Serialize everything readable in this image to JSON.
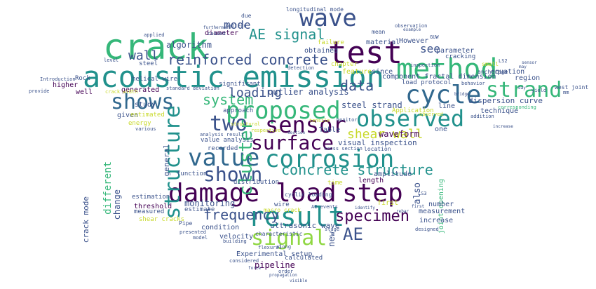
{
  "palette": {
    "purple": "#440154",
    "indigo": "#3b528b",
    "blue": "#31688e",
    "teal": "#21918c",
    "green": "#35b779",
    "lime": "#90d743",
    "yellow": "#c8d92a"
  },
  "words": [
    {
      "id": "crack",
      "text": "crack",
      "color": "green"
    },
    {
      "id": "wave",
      "text": "wave",
      "color": "indigo"
    },
    {
      "id": "test",
      "text": "test",
      "color": "purple"
    },
    {
      "id": "ae-signal",
      "text": "AE signal",
      "color": "teal"
    },
    {
      "id": "acoustic-emission",
      "text": "acoustic emission",
      "color": "teal"
    },
    {
      "id": "method",
      "text": "method",
      "color": "green"
    },
    {
      "id": "reinforced-concrete",
      "text": "reinforced concrete",
      "color": "indigo"
    },
    {
      "id": "wall",
      "text": "wall",
      "color": "indigo"
    },
    {
      "id": "mode",
      "text": "mode",
      "color": "indigo"
    },
    {
      "id": "strand",
      "text": "strand",
      "color": "green"
    },
    {
      "id": "cycle",
      "text": "cycle",
      "color": "blue"
    },
    {
      "id": "shows",
      "text": "shows",
      "color": "blue"
    },
    {
      "id": "proposed",
      "text": "proposed",
      "color": "green"
    },
    {
      "id": "system",
      "text": "system",
      "color": "green"
    },
    {
      "id": "loading",
      "text": "loading",
      "color": "indigo"
    },
    {
      "id": "data",
      "text": "data",
      "color": "indigo"
    },
    {
      "id": "observed",
      "text": "observed",
      "color": "teal"
    },
    {
      "id": "two",
      "text": "two",
      "color": "indigo"
    },
    {
      "id": "sensor",
      "text": "sensor",
      "color": "purple"
    },
    {
      "id": "surface",
      "text": "surface",
      "color": "purple"
    },
    {
      "id": "shear-wall",
      "text": "shear wall",
      "color": "yellow"
    },
    {
      "id": "cluster",
      "text": "cluster",
      "color": "green"
    },
    {
      "id": "value",
      "text": "value",
      "color": "blue"
    },
    {
      "id": "corrosion",
      "text": "corrosion",
      "color": "teal"
    },
    {
      "id": "shown",
      "text": "shown",
      "color": "indigo"
    },
    {
      "id": "concrete-structure",
      "text": "concrete structure",
      "color": "teal"
    },
    {
      "id": "structure",
      "text": "structure",
      "color": "teal"
    },
    {
      "id": "damage",
      "text": "damage",
      "color": "purple"
    },
    {
      "id": "load",
      "text": "load",
      "color": "purple"
    },
    {
      "id": "step",
      "text": "step",
      "color": "purple"
    },
    {
      "id": "result",
      "text": "result",
      "color": "teal"
    },
    {
      "id": "signal",
      "text": "signal",
      "color": "lime"
    },
    {
      "id": "frequency",
      "text": "frequency",
      "color": "indigo"
    },
    {
      "id": "specimen",
      "text": "specimen",
      "color": "purple"
    },
    {
      "id": "ae",
      "text": "AE",
      "color": "indigo"
    },
    {
      "id": "see",
      "text": "see",
      "color": "indigo"
    },
    {
      "id": "outlier-analysis",
      "text": "outlier analysis",
      "color": "indigo"
    },
    {
      "id": "steel-strand",
      "text": "steel strand",
      "color": "indigo"
    },
    {
      "id": "waveform",
      "text": "waveform",
      "color": "purple"
    },
    {
      "id": "visual-inspection",
      "text": "visual inspection",
      "color": "indigo"
    },
    {
      "id": "monitoring",
      "text": "monitoring",
      "color": "indigo"
    },
    {
      "id": "ultrasonic-wave",
      "text": "ultrasonic wave",
      "color": "indigo"
    },
    {
      "id": "experimental-setup",
      "text": "Experimental setup",
      "color": "indigo"
    },
    {
      "id": "pipeline",
      "text": "pipeline",
      "color": "purple"
    },
    {
      "id": "algorithm",
      "text": "algorithm",
      "color": "indigo"
    },
    {
      "id": "diameter",
      "text": "diameter",
      "color": "purple"
    },
    {
      "id": "longitudinal-mode",
      "text": "longitudinal mode",
      "color": "indigo"
    },
    {
      "id": "material",
      "text": "material",
      "color": "indigo"
    },
    {
      "id": "however",
      "text": "However",
      "color": "indigo"
    },
    {
      "id": "obtained",
      "text": "obtained",
      "color": "indigo"
    },
    {
      "id": "parameter",
      "text": "parameter",
      "color": "indigo"
    },
    {
      "id": "cracking",
      "text": "cracking",
      "color": "indigo"
    },
    {
      "id": "chapter",
      "text": "chapter",
      "color": "yellow"
    },
    {
      "id": "feature",
      "text": "feature",
      "color": "yellow"
    },
    {
      "id": "since",
      "text": "since",
      "color": "indigo"
    },
    {
      "id": "also",
      "text": "also",
      "color": "indigo"
    },
    {
      "id": "equation",
      "text": "equation",
      "color": "indigo"
    },
    {
      "id": "region",
      "text": "region",
      "color": "indigo"
    },
    {
      "id": "component-fractal-dimension",
      "text": "component fractal dimension",
      "color": "indigo"
    },
    {
      "id": "load-protocol",
      "text": "load protocol",
      "color": "indigo"
    },
    {
      "id": "dispersion-curve",
      "text": "dispersion curve",
      "color": "indigo"
    },
    {
      "id": "technique",
      "text": "technique",
      "color": "indigo"
    },
    {
      "id": "line",
      "text": "line",
      "color": "indigo"
    },
    {
      "id": "one",
      "text": "one",
      "color": "indigo"
    },
    {
      "id": "application",
      "text": "Application",
      "color": "yellow"
    },
    {
      "id": "table",
      "text": "Table",
      "color": "indigo"
    },
    {
      "id": "location",
      "text": "location",
      "color": "indigo"
    },
    {
      "id": "length",
      "text": "length",
      "color": "purple"
    },
    {
      "id": "amplitude",
      "text": "amplitude",
      "color": "indigo"
    },
    {
      "id": "first",
      "text": "first",
      "color": "yellow"
    },
    {
      "id": "number",
      "text": "number",
      "color": "indigo"
    },
    {
      "id": "measurement",
      "text": "measurement",
      "color": "indigo"
    },
    {
      "id": "increase",
      "text": "increase",
      "color": "indigo"
    },
    {
      "id": "joint-opening",
      "text": "joint opening",
      "color": "green"
    },
    {
      "id": "new",
      "text": "new",
      "color": "indigo"
    },
    {
      "id": "observed-small",
      "text": "observed",
      "color": "yellow"
    },
    {
      "id": "generated",
      "text": "generated",
      "color": "purple"
    },
    {
      "id": "study",
      "text": "study",
      "color": "indigo"
    },
    {
      "id": "given",
      "text": "given",
      "color": "indigo"
    },
    {
      "id": "estimated",
      "text": "estimated",
      "color": "yellow"
    },
    {
      "id": "energy",
      "text": "energy",
      "color": "yellow"
    },
    {
      "id": "approach",
      "text": "approach",
      "color": "indigo"
    },
    {
      "id": "value-analysis",
      "text": "value analysis",
      "color": "indigo"
    },
    {
      "id": "recorded",
      "text": "recorded",
      "color": "indigo"
    },
    {
      "id": "significant",
      "text": "significant",
      "color": "indigo"
    },
    {
      "id": "standard-deviation",
      "text": "standard deviation",
      "color": "indigo"
    },
    {
      "id": "helical-wire",
      "text": "helical wire",
      "color": "indigo"
    },
    {
      "id": "well",
      "text": "well",
      "color": "purple"
    },
    {
      "id": "steel",
      "text": "steel",
      "color": "indigo"
    },
    {
      "id": "higher",
      "text": "higher",
      "color": "purple"
    },
    {
      "id": "rock",
      "text": "Rock",
      "color": "indigo"
    },
    {
      "id": "introduction",
      "text": "Introduction",
      "color": "indigo"
    },
    {
      "id": "provide",
      "text": "provide",
      "color": "indigo"
    },
    {
      "id": "different",
      "text": "different",
      "color": "green"
    },
    {
      "id": "change",
      "text": "change",
      "color": "indigo"
    },
    {
      "id": "crack-mode",
      "text": "crack mode",
      "color": "indigo"
    },
    {
      "id": "threshold",
      "text": "threshold",
      "color": "purple"
    },
    {
      "id": "measured",
      "text": "measured",
      "color": "indigo"
    },
    {
      "id": "estimation",
      "text": "estimation",
      "color": "indigo"
    },
    {
      "id": "shear-cracks",
      "text": "shear cracks",
      "color": "yellow"
    },
    {
      "id": "condition",
      "text": "condition",
      "color": "indigo"
    },
    {
      "id": "estimate",
      "text": "estimate",
      "color": "indigo"
    },
    {
      "id": "function",
      "text": "function",
      "color": "indigo"
    },
    {
      "id": "distribution",
      "text": "distribution",
      "color": "indigo"
    },
    {
      "id": "cyclic-loading",
      "text": "cyclic loading",
      "color": "indigo"
    },
    {
      "id": "wire",
      "text": "wire",
      "color": "indigo"
    },
    {
      "id": "velocity",
      "text": "velocity",
      "color": "indigo"
    },
    {
      "id": "calculated",
      "text": "calculated",
      "color": "indigo"
    },
    {
      "id": "pipe",
      "text": "Pipe",
      "color": "indigo"
    },
    {
      "id": "macro-crack",
      "text": "macro crack",
      "color": "yellow"
    },
    {
      "id": "time",
      "text": "time",
      "color": "yellow"
    },
    {
      "id": "characteristic",
      "text": "characteristic",
      "color": "indigo"
    },
    {
      "id": "general",
      "text": "general",
      "color": "indigo"
    },
    {
      "id": "due",
      "text": "due",
      "color": "indigo"
    },
    {
      "id": "pattern",
      "text": "pattern",
      "color": "indigo"
    },
    {
      "id": "observation",
      "text": "observation",
      "color": "indigo"
    },
    {
      "id": "mean",
      "text": "mean",
      "color": "indigo"
    },
    {
      "id": "failure",
      "text": "failure",
      "color": "yellow"
    },
    {
      "id": "small",
      "text": "small",
      "color": "yellow"
    },
    {
      "id": "anchorage",
      "text": "anchorage",
      "color": "indigo"
    },
    {
      "id": "west-joint",
      "text": "west joint",
      "color": "indigo"
    },
    {
      "id": "caused",
      "text": "caused",
      "color": "indigo"
    },
    {
      "id": "applied",
      "text": "applied",
      "color": "indigo"
    },
    {
      "id": "level",
      "text": "level",
      "color": "indigo"
    },
    {
      "id": "presented",
      "text": "presented",
      "color": "indigo"
    },
    {
      "id": "building",
      "text": "building",
      "color": "indigo"
    },
    {
      "id": "stage",
      "text": "stage",
      "color": "indigo"
    },
    {
      "id": "order",
      "text": "order",
      "color": "indigo"
    },
    {
      "id": "propagation",
      "text": "propagation",
      "color": "indigo"
    },
    {
      "id": "considered",
      "text": "considered",
      "color": "indigo"
    },
    {
      "id": "flexural",
      "text": "flexural",
      "color": "indigo"
    },
    {
      "id": "along",
      "text": "along",
      "color": "indigo"
    },
    {
      "id": "model",
      "text": "model",
      "color": "indigo"
    },
    {
      "id": "ls2",
      "text": "LS2",
      "color": "indigo"
    },
    {
      "id": "guw",
      "text": "GUW",
      "color": "indigo"
    },
    {
      "id": "yield",
      "text": "yield",
      "color": "indigo"
    },
    {
      "id": "behavior",
      "text": "behavior",
      "color": "indigo"
    },
    {
      "id": "addition",
      "text": "addition",
      "color": "indigo"
    },
    {
      "id": "corresponding",
      "text": "corresponding",
      "color": "green"
    },
    {
      "id": "inspection",
      "text": "inspection",
      "color": "indigo"
    },
    {
      "id": "detection",
      "text": "detection",
      "color": "indigo"
    },
    {
      "id": "analysis-result",
      "text": "analysis result",
      "color": "indigo"
    },
    {
      "id": "cross-section",
      "text": "cross section",
      "color": "indigo"
    },
    {
      "id": "respective",
      "text": "respective",
      "color": "yellow"
    },
    {
      "id": "section",
      "text": "section",
      "color": "indigo"
    },
    {
      "id": "mm",
      "text": "mm",
      "color": "indigo"
    },
    {
      "id": "sensor-small",
      "text": "sensor",
      "color": "indigo"
    },
    {
      "id": "increase-small",
      "text": "increase",
      "color": "indigo"
    },
    {
      "id": "structural",
      "text": "structural",
      "color": "yellow"
    },
    {
      "id": "ae-events",
      "text": "AE events",
      "color": "indigo"
    },
    {
      "id": "example",
      "text": "example",
      "color": "indigo"
    },
    {
      "id": "tensile",
      "text": "tensile",
      "color": "yellow"
    },
    {
      "id": "may",
      "text": "may",
      "color": "indigo"
    },
    {
      "id": "crack-width",
      "text": "crack width",
      "color": "yellow"
    },
    {
      "id": "monitor",
      "text": "monitor",
      "color": "indigo"
    },
    {
      "id": "various",
      "text": "various",
      "color": "indigo"
    },
    {
      "id": "identify",
      "text": "identify",
      "color": "indigo"
    },
    {
      "id": "ls3",
      "text": "LS3",
      "color": "indigo"
    },
    {
      "id": "designed",
      "text": "designed",
      "color": "indigo"
    },
    {
      "id": "day",
      "text": "day",
      "color": "indigo"
    },
    {
      "id": "furthermore",
      "text": "furthermore",
      "color": "indigo"
    },
    {
      "id": "force",
      "text": "force",
      "color": "indigo"
    },
    {
      "id": "first-small",
      "text": "first",
      "color": "indigo"
    },
    {
      "id": "visible",
      "text": "visible",
      "color": "indigo"
    },
    {
      "id": "bridge",
      "text": "bridge",
      "color": "indigo"
    },
    {
      "id": "rebar",
      "text": "rebar",
      "color": "indigo"
    }
  ]
}
